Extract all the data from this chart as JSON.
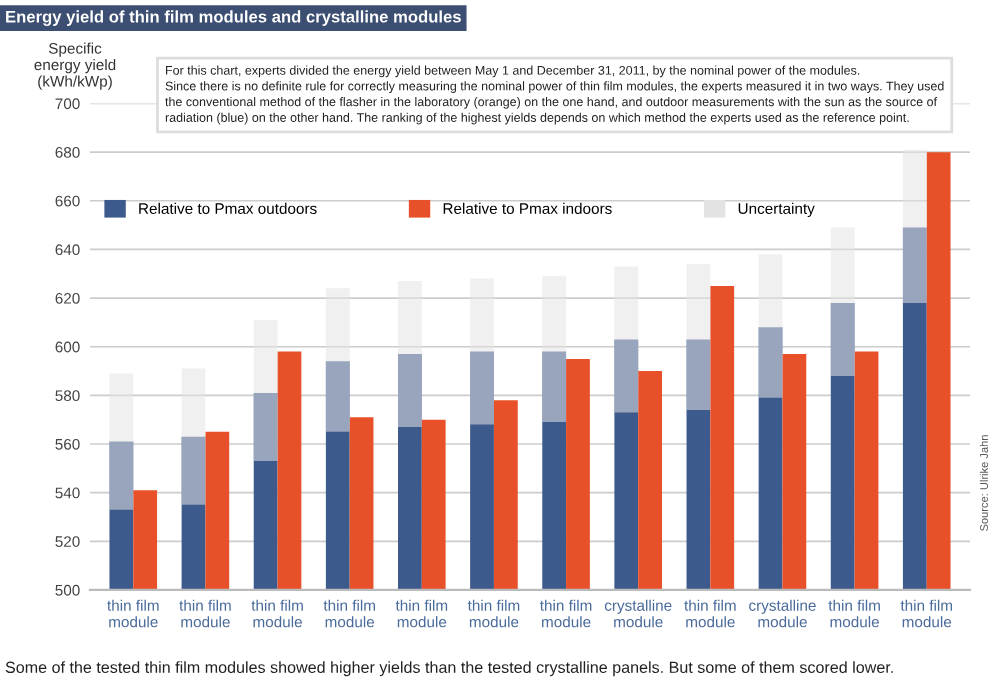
{
  "chart_data": {
    "type": "bar",
    "title": "Energy yield of thin film modules and crystalline modules",
    "ylabel": "Specific\nenergy yield\n(kWh/kWp)",
    "categories": [
      "thin film\nmodule",
      "thin film\nmodule",
      "thin film\nmodule",
      "thin film\nmodule",
      "thin film\nmodule",
      "thin film\nmodule",
      "thin film\nmodule",
      "crystalline\nmodule",
      "thin film\nmodule",
      "crystalline\nmodule",
      "thin film\nmodule",
      "thin film\nmodule"
    ],
    "series": [
      {
        "name": "Relative to Pmax outdoors",
        "color": "#3d5a8c",
        "values": [
          561,
          563,
          581,
          594,
          597,
          598,
          598,
          603,
          603,
          608,
          618,
          649
        ]
      },
      {
        "name": "Relative to Pmax indoors",
        "color": "#e8502a",
        "values": [
          541,
          565,
          598,
          571,
          570,
          578,
          595,
          590,
          625,
          597,
          598,
          680
        ]
      },
      {
        "name": "Uncertainty",
        "color": "#e3e3e3",
        "base": [
          533,
          535,
          553,
          565,
          567,
          568,
          569,
          573,
          574,
          579,
          588,
          618
        ],
        "values": [
          56,
          56,
          58,
          59,
          60,
          60,
          60,
          60,
          60,
          59,
          61,
          63
        ]
      }
    ],
    "ylim": [
      500,
      700
    ],
    "yticks": [
      500,
      520,
      540,
      560,
      580,
      600,
      620,
      640,
      660,
      680,
      700
    ],
    "grid": "y",
    "legend": "top",
    "annotations": [
      "For this chart, experts divided the energy yield between May 1 and December 31, 2011, by the nominal power of the modules.\nSince there is no definite rule for correctly measuring the nominal power of thin film modules, the experts measured it in two ways. They used\nthe conventional method of the flasher in the laboratory (orange) on the one hand, and outdoor measurements with the sun as the source of\nradiation (blue) on the other hand. The ranking of the highest yields depends on which method the experts used as the reference point.",
      "Source: Ulrike Jahn",
      "Some of the tested thin film modules showed higher yields than the tested crystalline panels. But some of them scored lower."
    ]
  }
}
